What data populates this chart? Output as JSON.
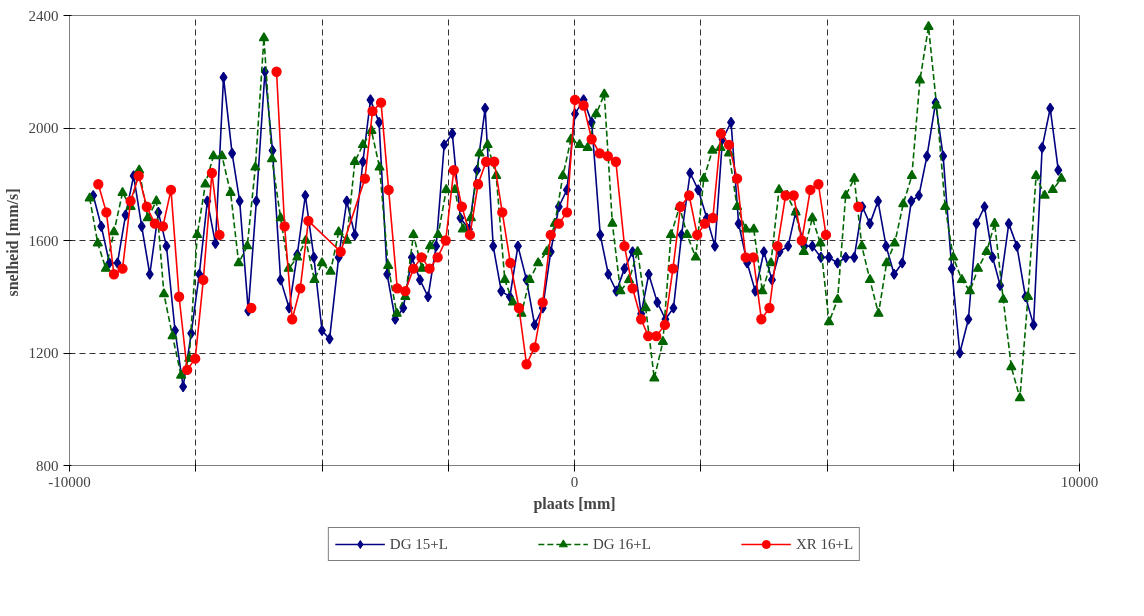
{
  "chart_data": {
    "type": "line",
    "xlabel": "plaats [mm]",
    "ylabel": "snelheid  [mm/s]",
    "xlim": [
      -10000,
      10000
    ],
    "ylim": [
      800,
      2400
    ],
    "xticks": [
      -10000,
      {
        "value": -7500,
        "label": null
      },
      {
        "value": -5000,
        "label": null
      },
      {
        "value": -2500,
        "label": null
      },
      0,
      {
        "value": 2500,
        "label": null
      },
      {
        "value": 5000,
        "label": null
      },
      {
        "value": 7500,
        "label": null
      },
      10000
    ],
    "yticks": [
      800,
      1200,
      1600,
      2000,
      2400
    ],
    "grid": true,
    "legend": "bottom",
    "series": [
      {
        "name": "DG 15+L",
        "color": "#000080",
        "marker": "diamond",
        "line_style": "solid",
        "x": [
          -9530,
          -9370,
          -9210,
          -9050,
          -8890,
          -8730,
          -8570,
          -8410,
          -8240,
          -8080,
          -7910,
          -7750,
          -7590,
          -7430,
          -7270,
          -7110,
          -6950,
          -6780,
          -6630,
          -6460,
          -6300,
          -6130,
          -5980,
          -5820,
          -5650,
          -5490,
          -5330,
          -5160,
          -5000,
          -4850,
          -4670,
          -4510,
          -4350,
          -4190,
          -4040,
          -3870,
          -3710,
          -3550,
          -3390,
          -3220,
          -3060,
          -2900,
          -2740,
          -2580,
          -2420,
          -2260,
          -2090,
          -1930,
          -1770,
          -1610,
          -1450,
          -1280,
          -1120,
          -950,
          -790,
          -630,
          -470,
          -310,
          -150,
          10,
          180,
          340,
          510,
          670,
          830,
          990,
          1150,
          1320,
          1470,
          1640,
          1800,
          1960,
          2120,
          2290,
          2450,
          2620,
          2780,
          2930,
          3100,
          3250,
          3420,
          3580,
          3750,
          3910,
          4060,
          4230,
          4380,
          4550,
          4710,
          4880,
          5040,
          5210,
          5370,
          5540,
          5700,
          5850,
          6010,
          6170,
          6330,
          6490,
          6670,
          6820,
          6980,
          7150,
          7300,
          7470,
          7630,
          7800,
          7960,
          8120,
          8280,
          8430,
          8600,
          8760,
          8930,
          9090,
          9260,
          9420,
          9580
        ],
        "values": [
          1760,
          1650,
          1520,
          1520,
          1690,
          1830,
          1650,
          1480,
          1700,
          1580,
          1280,
          1080,
          1270,
          1480,
          1740,
          1590,
          2180,
          1910,
          1740,
          1350,
          1740,
          2200,
          1920,
          1460,
          1360,
          1550,
          1760,
          1540,
          1280,
          1250,
          1540,
          1740,
          1620,
          1880,
          2100,
          2020,
          1480,
          1320,
          1360,
          1540,
          1460,
          1400,
          1580,
          1940,
          1980,
          1680,
          1640,
          1850,
          2070,
          1580,
          1420,
          1400,
          1580,
          1460,
          1300,
          1360,
          1560,
          1720,
          1780,
          2050,
          2100,
          2020,
          1620,
          1480,
          1420,
          1500,
          1560,
          1340,
          1480,
          1380,
          1320,
          1360,
          1620,
          1840,
          1780,
          1680,
          1580,
          1960,
          2020,
          1660,
          1520,
          1420,
          1560,
          1460,
          1560,
          1580,
          1700,
          1580,
          1580,
          1540,
          1540,
          1520,
          1540,
          1540,
          1720,
          1660,
          1740,
          1580,
          1480,
          1520,
          1740,
          1760,
          1900,
          2090,
          1900,
          1500,
          1200,
          1320,
          1660,
          1720,
          1540,
          1440,
          1660,
          1580,
          1400,
          1300,
          1930,
          2070,
          1850
        ]
      },
      {
        "name": "DG 16+L",
        "color": "#006600",
        "marker": "triangle",
        "line_style": "dashed",
        "x": [
          -9600,
          -9440,
          -9280,
          -9120,
          -8950,
          -8790,
          -8620,
          -8450,
          -8280,
          -8130,
          -7960,
          -7790,
          -7630,
          -7470,
          -7310,
          -7150,
          -6980,
          -6810,
          -6650,
          -6480,
          -6320,
          -6150,
          -5990,
          -5820,
          -5660,
          -5490,
          -5320,
          -5150,
          -5000,
          -4830,
          -4670,
          -4510,
          -4350,
          -4190,
          -4020,
          -3860,
          -3690,
          -3520,
          -3350,
          -3190,
          -3020,
          -2860,
          -2700,
          -2540,
          -2370,
          -2210,
          -2050,
          -1880,
          -1720,
          -1550,
          -1380,
          -1220,
          -1050,
          -890,
          -720,
          -550,
          -390,
          -230,
          -70,
          100,
          260,
          430,
          590,
          750,
          910,
          1080,
          1250,
          1410,
          1580,
          1750,
          1910,
          2080,
          2230,
          2400,
          2560,
          2730,
          2890,
          3060,
          3220,
          3390,
          3550,
          3720,
          3890,
          4050,
          4210,
          4380,
          4540,
          4710,
          4870,
          5040,
          5210,
          5370,
          5540,
          5690,
          5850,
          6020,
          6180,
          6340,
          6510,
          6680,
          6840,
          7010,
          7170,
          7340,
          7500,
          7670,
          7830,
          7990,
          8160,
          8320,
          8490,
          8650,
          8820,
          8980,
          9140,
          9310,
          9470,
          9640
        ],
        "values": [
          1750,
          1590,
          1500,
          1630,
          1770,
          1720,
          1850,
          1680,
          1740,
          1410,
          1260,
          1120,
          1180,
          1620,
          1800,
          1900,
          1900,
          1770,
          1520,
          1580,
          1860,
          2320,
          1890,
          1680,
          1500,
          1540,
          1600,
          1460,
          1520,
          1490,
          1630,
          1600,
          1880,
          1940,
          1990,
          1860,
          1510,
          1340,
          1400,
          1620,
          1500,
          1580,
          1620,
          1780,
          1780,
          1640,
          1680,
          1910,
          1940,
          1830,
          1460,
          1380,
          1340,
          1460,
          1520,
          1560,
          1660,
          1830,
          1960,
          1940,
          1930,
          2050,
          2120,
          1660,
          1420,
          1460,
          1560,
          1360,
          1110,
          1240,
          1620,
          1720,
          1620,
          1540,
          1820,
          1920,
          1930,
          1910,
          1720,
          1640,
          1640,
          1420,
          1520,
          1780,
          1760,
          1700,
          1560,
          1680,
          1590,
          1310,
          1390,
          1760,
          1820,
          1580,
          1460,
          1340,
          1520,
          1590,
          1730,
          1830,
          2170,
          2360,
          2080,
          1720,
          1540,
          1460,
          1420,
          1500,
          1560,
          1660,
          1390,
          1150,
          1040,
          1400,
          1830,
          1760,
          1780,
          1820
        ]
      },
      {
        "name": "XR 16+L",
        "color": "#ff0000",
        "marker": "circle",
        "line_style": "solid",
        "x": [
          -9430,
          -9270,
          -9120,
          -8950,
          -8790,
          -8630,
          -8470,
          -8310,
          -8150,
          -7990,
          -7830,
          -7670,
          -7510,
          -7350,
          -7180,
          -7030,
          -6710,
          -6400,
          -6150,
          -5900,
          -5740,
          -5590,
          -5430,
          -5270,
          -4630,
          -4150,
          -4000,
          -3830,
          -3680,
          -3510,
          -3350,
          -3190,
          -3030,
          -2870,
          -2710,
          -2550,
          -2390,
          -2230,
          -2070,
          -1910,
          -1750,
          -1590,
          -1430,
          -1270,
          -1100,
          -950,
          -790,
          -630,
          -470,
          -310,
          -150,
          10,
          180,
          340,
          500,
          660,
          820,
          990,
          1150,
          1320,
          1460,
          1620,
          1790,
          1950,
          2100,
          2270,
          2430,
          2580,
          2740,
          2900,
          3060,
          3220,
          3390,
          3540,
          3700,
          3860,
          4020,
          4180,
          4340,
          4500,
          4670,
          4830,
          4980,
          5300,
          5620
        ],
        "values": [
          1800,
          1700,
          1480,
          1500,
          1740,
          1830,
          1720,
          1660,
          1650,
          1780,
          1400,
          1140,
          1180,
          1460,
          1840,
          1620,
          null,
          1360,
          null,
          2200,
          1650,
          1320,
          1430,
          1670,
          1560,
          1820,
          2060,
          2090,
          1780,
          1430,
          1420,
          1500,
          1540,
          1500,
          1540,
          1600,
          1850,
          1720,
          1620,
          1800,
          1880,
          1880,
          1700,
          1520,
          1360,
          1160,
          1220,
          1380,
          1620,
          1660,
          1700,
          2100,
          2080,
          1960,
          1910,
          1900,
          1880,
          1580,
          1430,
          1320,
          1260,
          1260,
          1300,
          1500,
          1720,
          1760,
          1620,
          1660,
          1680,
          1980,
          1940,
          1820,
          1540,
          1540,
          1320,
          1360,
          1580,
          1760,
          1760,
          1600,
          1780,
          1800,
          1620,
          null,
          1720
        ]
      }
    ]
  }
}
